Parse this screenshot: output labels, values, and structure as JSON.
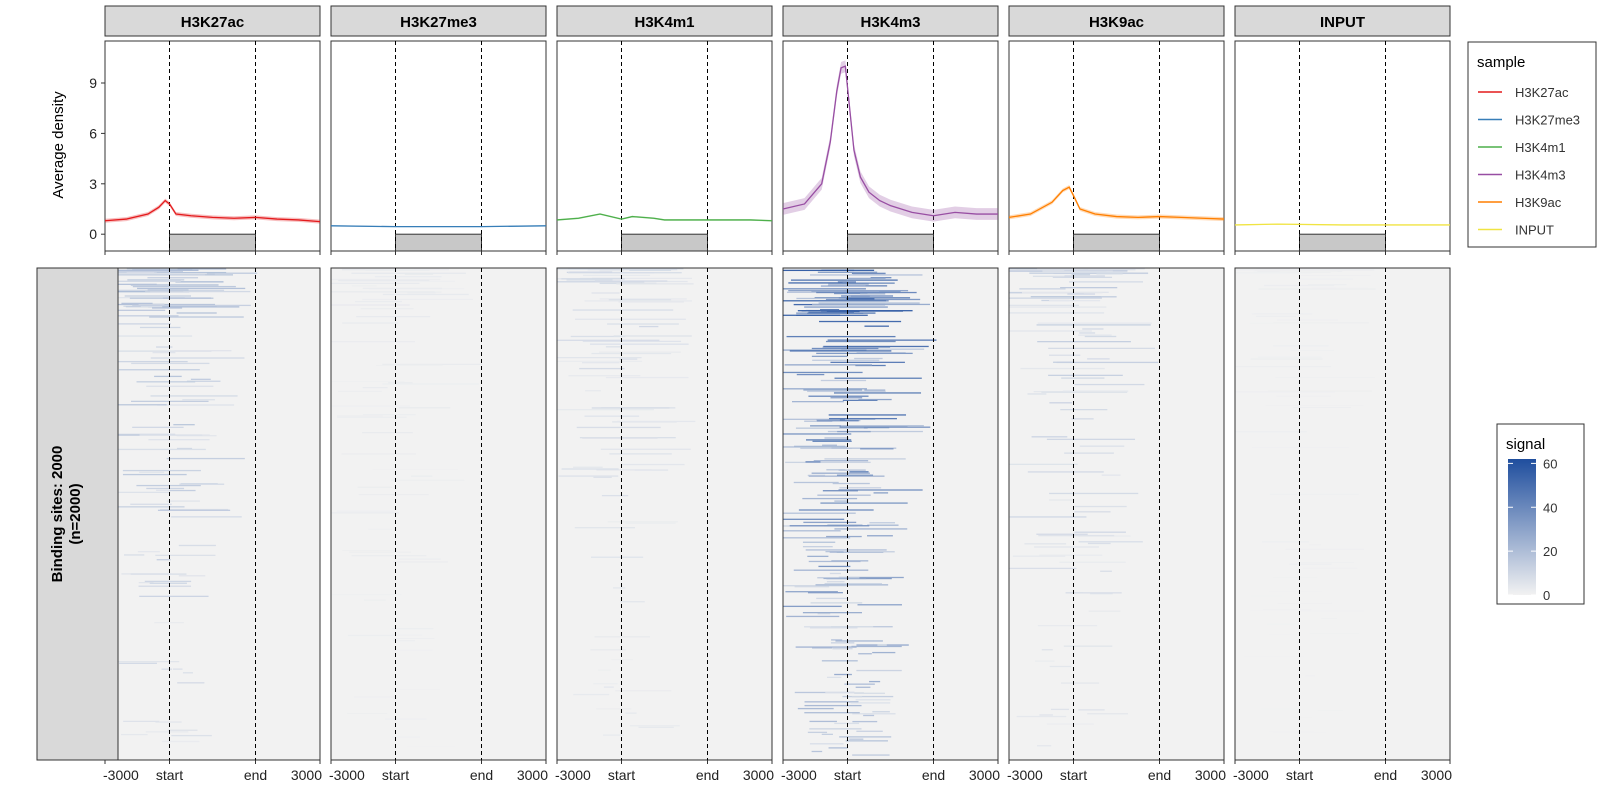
{
  "chart_data": {
    "type": "line+heatmap",
    "samples": [
      "H3K27ac",
      "H3K27me3",
      "H3K4m1",
      "H3K4m3",
      "H3K9ac",
      "INPUT"
    ],
    "colors": {
      "H3K27ac": "#E41A1C",
      "H3K27me3": "#377EB8",
      "H3K4m1": "#4DAF4A",
      "H3K4m3": "#984EA3",
      "H3K9ac": "#FF7F00",
      "INPUT": "#F0E442"
    },
    "profile": {
      "ylabel": "Average density",
      "ylim": [
        -1,
        11.5
      ],
      "yticks": [
        0,
        3,
        6,
        9
      ],
      "x_ticks": [
        "-3000",
        "start",
        "end",
        "3000"
      ],
      "x_positions": [
        0,
        0.3,
        0.7,
        1.0
      ],
      "region": {
        "start": 0.3,
        "end": 0.7,
        "value": 0
      },
      "series": [
        {
          "name": "H3K27ac",
          "x": [
            0,
            0.1,
            0.2,
            0.25,
            0.28,
            0.3,
            0.33,
            0.4,
            0.5,
            0.6,
            0.7,
            0.8,
            0.9,
            1.0
          ],
          "y": [
            0.8,
            0.9,
            1.2,
            1.6,
            2.0,
            1.8,
            1.2,
            1.1,
            1.0,
            0.95,
            1.0,
            0.9,
            0.85,
            0.75
          ],
          "band": 0.12
        },
        {
          "name": "H3K27me3",
          "x": [
            0,
            0.3,
            0.5,
            0.7,
            1.0
          ],
          "y": [
            0.5,
            0.45,
            0.45,
            0.45,
            0.5
          ],
          "band": 0.03
        },
        {
          "name": "H3K4m1",
          "x": [
            0,
            0.1,
            0.2,
            0.3,
            0.35,
            0.45,
            0.5,
            0.6,
            0.7,
            0.8,
            0.9,
            1.0
          ],
          "y": [
            0.85,
            0.95,
            1.2,
            0.9,
            1.05,
            0.95,
            0.85,
            0.85,
            0.85,
            0.85,
            0.85,
            0.8
          ],
          "band": 0.05
        },
        {
          "name": "H3K4m3",
          "x": [
            0,
            0.1,
            0.18,
            0.22,
            0.25,
            0.27,
            0.29,
            0.31,
            0.33,
            0.36,
            0.4,
            0.45,
            0.5,
            0.6,
            0.7,
            0.8,
            0.9,
            1.0
          ],
          "y": [
            1.5,
            1.8,
            3.0,
            5.5,
            8.5,
            9.9,
            10.0,
            7.5,
            5.0,
            3.4,
            2.5,
            2.0,
            1.7,
            1.3,
            1.1,
            1.3,
            1.2,
            1.2
          ],
          "band": 0.35
        },
        {
          "name": "H3K9ac",
          "x": [
            0,
            0.1,
            0.2,
            0.25,
            0.28,
            0.3,
            0.33,
            0.4,
            0.5,
            0.6,
            0.7,
            0.8,
            0.9,
            1.0
          ],
          "y": [
            1.0,
            1.2,
            1.9,
            2.6,
            2.8,
            2.3,
            1.5,
            1.2,
            1.05,
            1.0,
            1.05,
            1.0,
            0.95,
            0.9
          ],
          "band": 0.12
        },
        {
          "name": "INPUT",
          "x": [
            0,
            0.2,
            0.5,
            0.8,
            1.0
          ],
          "y": [
            0.55,
            0.6,
            0.55,
            0.55,
            0.55
          ],
          "band": 0.03
        }
      ]
    },
    "heatmap": {
      "ylabel": "Binding sites: 2000",
      "ylabel2": "(n=2000)",
      "rows": 2000,
      "x_ticks": [
        "-3000",
        "start",
        "end",
        "3000"
      ],
      "x_positions": [
        0,
        0.3,
        0.7,
        1.0
      ]
    },
    "legend": {
      "title": "sample",
      "entries": [
        "H3K27ac",
        "H3K27me3",
        "H3K4m1",
        "H3K4m3",
        "H3K9ac",
        "INPUT"
      ]
    },
    "colorbar": {
      "title": "signal",
      "ticks": [
        0,
        20,
        40,
        60
      ],
      "range": [
        0,
        62
      ],
      "low": "#F2F2F2",
      "high": "#1F4E9E"
    }
  }
}
